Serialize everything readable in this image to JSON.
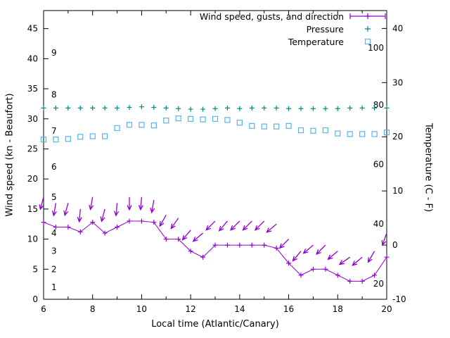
{
  "chart_data": {
    "type": "line",
    "title": "",
    "xlabel": "Local time (Atlantic/Canary)",
    "ylabel_left": "Wind speed (kn - Beaufort)",
    "ylabel_right": "Temperature (C - F)",
    "x_range": [
      6,
      20
    ],
    "x_ticks_major": [
      6,
      8,
      10,
      12,
      14,
      16,
      18,
      20
    ],
    "x_tick_minor_step": 1,
    "y_left_range": [
      0,
      48
    ],
    "y_left_ticks": [
      0,
      5,
      10,
      15,
      20,
      25,
      30,
      35,
      40,
      45
    ],
    "y_right_range": [
      -10,
      43.3
    ],
    "y_right_ticks": [
      -10,
      0,
      10,
      20,
      30,
      40
    ],
    "grid": false,
    "legend_position": "top-right-inside",
    "colors": {
      "axis": "#000000",
      "background": "#ffffff",
      "wind": "#9400d3",
      "pressure": "#008b8b",
      "temperature": "#56b4e9"
    },
    "beaufort_scale_labels": [
      {
        "text": "1",
        "at": 2
      },
      {
        "text": "2",
        "at": 5
      },
      {
        "text": "3",
        "at": 8
      },
      {
        "text": "4",
        "at": 11
      },
      {
        "text": "5",
        "at": 17
      },
      {
        "text": "6",
        "at": 22
      },
      {
        "text": "7",
        "at": 28
      },
      {
        "text": "8",
        "at": 34
      },
      {
        "text": "9",
        "at": 41
      }
    ],
    "fahrenheit_scale_labels": [
      {
        "text": "20",
        "at": 2.6
      },
      {
        "text": "40",
        "at": 12.5
      },
      {
        "text": "60",
        "at": 22.4
      },
      {
        "text": "80",
        "at": 32.3
      },
      {
        "text": "100",
        "at": 41.8
      }
    ],
    "x": [
      6,
      6.5,
      7,
      7.5,
      8,
      8.5,
      9,
      9.5,
      10,
      10.5,
      11,
      11.5,
      12,
      12.5,
      13,
      13.5,
      14,
      14.5,
      15,
      15.5,
      16,
      16.5,
      17,
      17.5,
      18,
      18.5,
      19,
      19.5,
      20
    ],
    "series": {
      "wind": {
        "name": "Wind speed",
        "axis": "left",
        "color": "#9400d3",
        "marker": "plus",
        "line": true,
        "y": [
          12.8,
          12,
          12,
          11.2,
          12.8,
          11,
          12,
          13,
          13,
          12.8,
          10,
          10,
          8,
          7,
          9,
          9,
          9,
          9,
          9,
          8.5,
          6,
          4,
          5,
          5,
          4,
          3,
          3,
          4,
          7
        ]
      },
      "gusts": {
        "name": "Gusts and direction",
        "axis": "left",
        "color": "#9400d3",
        "marker": "arrow",
        "line": false,
        "y": [
          17,
          16,
          16,
          15,
          17,
          15,
          16,
          17,
          17,
          16.5,
          14,
          13.5,
          11.5,
          11,
          13,
          13,
          13,
          13,
          13,
          12.5,
          10,
          8,
          9,
          9,
          8,
          7,
          7,
          8,
          11
        ],
        "direction_deg": [
          195,
          190,
          195,
          185,
          190,
          195,
          185,
          180,
          185,
          190,
          210,
          215,
          220,
          230,
          225,
          220,
          225,
          225,
          225,
          230,
          225,
          220,
          230,
          225,
          230,
          235,
          230,
          210,
          200
        ]
      },
      "pressure": {
        "name": "Pressure",
        "axis": "left",
        "color": "#008b8b",
        "marker": "plus",
        "line": false,
        "y": [
          31.8,
          31.8,
          31.8,
          31.8,
          31.8,
          31.8,
          31.8,
          31.9,
          32,
          31.9,
          31.8,
          31.7,
          31.6,
          31.6,
          31.7,
          31.8,
          31.7,
          31.8,
          31.8,
          31.8,
          31.7,
          31.7,
          31.7,
          31.7,
          31.7,
          31.8,
          31.8,
          31.8,
          31.8
        ]
      },
      "temperature": {
        "name": "Temperature",
        "axis": "right",
        "color": "#56b4e9",
        "marker": "square-open",
        "line": false,
        "y": [
          19.5,
          19.5,
          19.6,
          20,
          20.1,
          20.1,
          21.6,
          22.2,
          22.2,
          22.1,
          23,
          23.4,
          23.3,
          23.2,
          23.3,
          23.1,
          22.6,
          22,
          21.9,
          21.9,
          22,
          21.2,
          21.1,
          21.2,
          20.6,
          20.5,
          20.5,
          20.5,
          20.8
        ]
      }
    },
    "legend": [
      {
        "label": "Wind speed, gusts, and direction",
        "series": "wind",
        "sample": "errorbar-plus"
      },
      {
        "label": "Pressure",
        "series": "pressure",
        "sample": "plus"
      },
      {
        "label": "Temperature",
        "series": "temperature",
        "sample": "square"
      }
    ]
  }
}
